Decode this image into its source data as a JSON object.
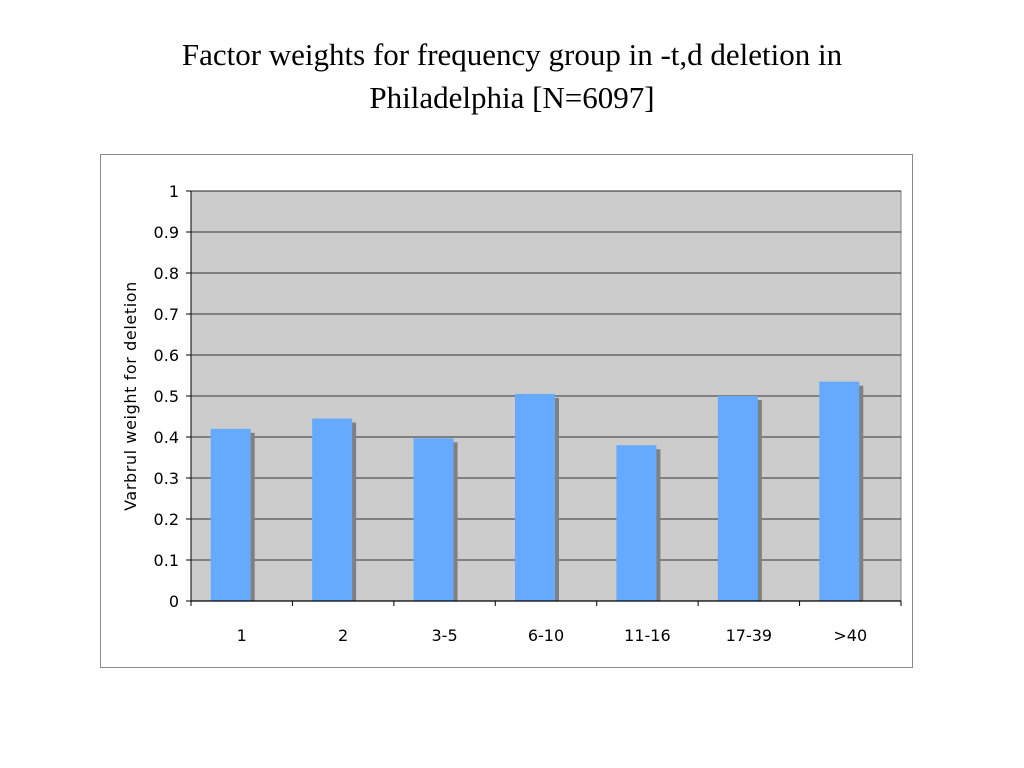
{
  "slide": {
    "title_line1": "Factor weights for frequency group in -t,d deletion in",
    "title_line2": "Philadelphia [N=6097]"
  },
  "chart_data": {
    "type": "bar",
    "title": "",
    "xlabel": "",
    "ylabel": "Varbrul weight for deletion",
    "categories": [
      "1",
      "2",
      "3-5",
      "6-10",
      "11-16",
      "17-39",
      ">40"
    ],
    "series": [
      {
        "values": [
          0.42,
          0.445,
          0.397,
          0.505,
          0.38,
          0.5,
          0.535
        ]
      }
    ],
    "ylim": [
      0,
      1
    ],
    "yticks": [
      "0",
      "0.1",
      "0.2",
      "0.3",
      "0.4",
      "0.5",
      "0.6",
      "0.7",
      "0.8",
      "0.9",
      "1"
    ],
    "grid": true,
    "legend": "none",
    "colors": {
      "bar": "#66aaff",
      "bar_shadow": "#808080",
      "plot_background": "#cccccc",
      "gridline": "#000000"
    }
  }
}
